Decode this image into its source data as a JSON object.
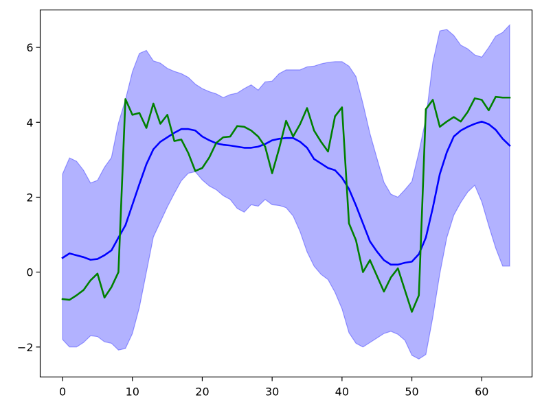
{
  "chart_data": {
    "type": "line",
    "title": "",
    "xlabel": "",
    "ylabel": "",
    "xlim": [
      -3.2,
      67.2
    ],
    "ylim": [
      -2.8,
      7.0
    ],
    "x_ticks": [
      0,
      10,
      20,
      30,
      40,
      50,
      60
    ],
    "x_tick_labels": [
      "0",
      "10",
      "20",
      "30",
      "40",
      "50",
      "60"
    ],
    "y_ticks": [
      -2,
      0,
      2,
      4,
      6
    ],
    "y_tick_labels": [
      "−2",
      "0",
      "2",
      "4",
      "6"
    ],
    "grid": false,
    "x": [
      0,
      1,
      2,
      3,
      4,
      5,
      6,
      7,
      8,
      9,
      10,
      11,
      12,
      13,
      14,
      15,
      16,
      17,
      18,
      19,
      20,
      21,
      22,
      23,
      24,
      25,
      26,
      27,
      28,
      29,
      30,
      31,
      32,
      33,
      34,
      35,
      36,
      37,
      38,
      39,
      40,
      41,
      42,
      43,
      44,
      45,
      46,
      47,
      48,
      49,
      50,
      51,
      52,
      53,
      54,
      55,
      56,
      57,
      58,
      59,
      60,
      61,
      62,
      63,
      64
    ],
    "series": [
      {
        "type": "line",
        "color": "#0000ff",
        "values": [
          0.38,
          0.5,
          0.45,
          0.4,
          0.33,
          0.35,
          0.45,
          0.58,
          0.92,
          1.25,
          1.8,
          2.35,
          2.88,
          3.28,
          3.48,
          3.6,
          3.72,
          3.82,
          3.82,
          3.78,
          3.62,
          3.52,
          3.44,
          3.4,
          3.38,
          3.35,
          3.32,
          3.32,
          3.35,
          3.42,
          3.52,
          3.56,
          3.58,
          3.58,
          3.48,
          3.32,
          3.02,
          2.9,
          2.78,
          2.72,
          2.52,
          2.22,
          1.78,
          1.3,
          0.82,
          0.55,
          0.32,
          0.2,
          0.2,
          0.25,
          0.28,
          0.48,
          0.92,
          1.72,
          2.62,
          3.2,
          3.62,
          3.78,
          3.88,
          3.96,
          4.02,
          3.95,
          3.8,
          3.56,
          3.38
        ]
      },
      {
        "type": "line",
        "color": "#008000",
        "values": [
          -0.72,
          -0.74,
          -0.62,
          -0.48,
          -0.22,
          -0.04,
          -0.68,
          -0.4,
          0.0,
          4.62,
          4.2,
          4.25,
          3.85,
          4.5,
          3.96,
          4.2,
          3.5,
          3.54,
          3.18,
          2.7,
          2.78,
          3.06,
          3.45,
          3.6,
          3.62,
          3.9,
          3.88,
          3.78,
          3.62,
          3.35,
          2.64,
          3.3,
          4.04,
          3.62,
          3.95,
          4.38,
          3.78,
          3.48,
          3.22,
          4.16,
          4.4,
          1.3,
          0.85,
          0.0,
          0.32,
          -0.1,
          -0.52,
          -0.14,
          0.1,
          -0.48,
          -1.06,
          -0.62,
          4.35,
          4.6,
          3.88,
          4.02,
          4.14,
          4.02,
          4.28,
          4.64,
          4.6,
          4.32,
          4.68,
          4.66,
          4.66
        ]
      },
      {
        "type": "area",
        "color": "#0000ff",
        "fill_opacity": 0.3,
        "upper": [
          2.62,
          3.05,
          2.96,
          2.72,
          2.38,
          2.45,
          2.8,
          3.06,
          3.98,
          4.6,
          5.35,
          5.84,
          5.92,
          5.64,
          5.58,
          5.44,
          5.36,
          5.3,
          5.2,
          5.02,
          4.9,
          4.82,
          4.76,
          4.66,
          4.74,
          4.78,
          4.9,
          5.0,
          4.86,
          5.08,
          5.1,
          5.3,
          5.4,
          5.4,
          5.4,
          5.48,
          5.5,
          5.56,
          5.6,
          5.62,
          5.62,
          5.5,
          5.22,
          4.5,
          3.7,
          3.04,
          2.4,
          2.08,
          2.0,
          2.2,
          2.42,
          3.2,
          4.1,
          5.6,
          6.44,
          6.48,
          6.32,
          6.06,
          5.96,
          5.8,
          5.74,
          6.0,
          6.3,
          6.4,
          6.6
        ],
        "lower": [
          -1.8,
          -2.0,
          -2.0,
          -1.88,
          -1.7,
          -1.72,
          -1.86,
          -1.9,
          -2.08,
          -2.04,
          -1.64,
          -0.94,
          0.0,
          0.94,
          1.34,
          1.74,
          2.1,
          2.44,
          2.64,
          2.68,
          2.46,
          2.3,
          2.2,
          2.04,
          1.94,
          1.7,
          1.6,
          1.8,
          1.76,
          1.94,
          1.8,
          1.78,
          1.72,
          1.5,
          1.08,
          0.54,
          0.16,
          -0.06,
          -0.2,
          -0.54,
          -0.98,
          -1.62,
          -1.9,
          -2.0,
          -1.88,
          -1.76,
          -1.64,
          -1.58,
          -1.66,
          -1.82,
          -2.22,
          -2.32,
          -2.2,
          -1.2,
          -0.04,
          0.92,
          1.52,
          1.86,
          2.14,
          2.32,
          1.88,
          1.24,
          0.64,
          0.16,
          0.16
        ]
      }
    ]
  }
}
